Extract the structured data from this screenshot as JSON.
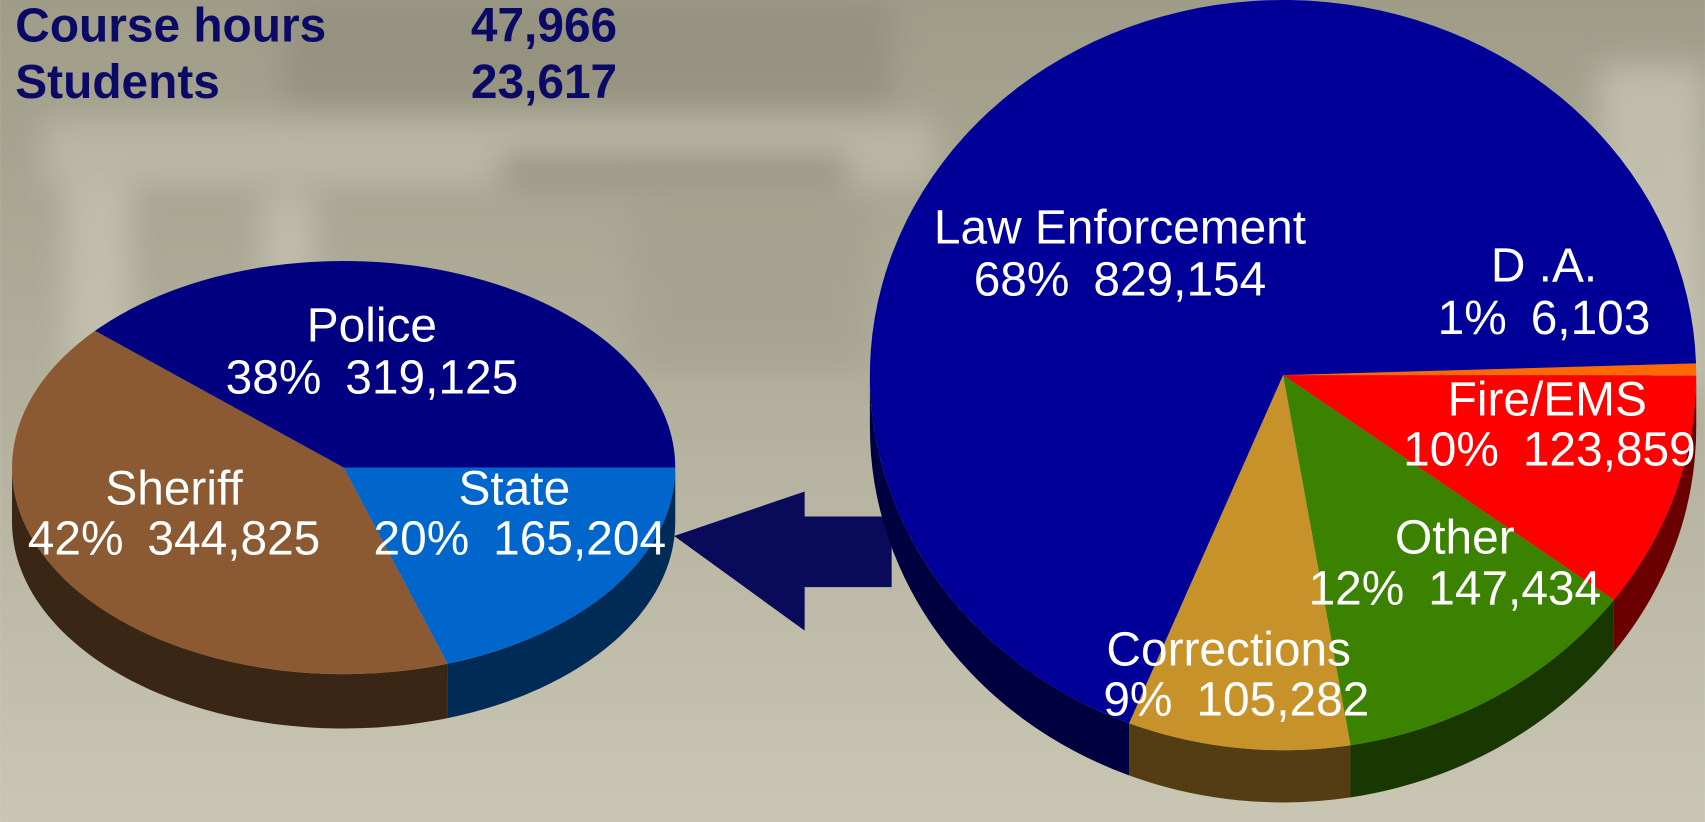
{
  "header": {
    "rows": [
      {
        "label": "Course hours",
        "value": "47,966"
      },
      {
        "label": "Students",
        "value": "23,617"
      }
    ]
  },
  "chart_data": [
    {
      "type": "pie",
      "categories": [
        "State",
        "Sheriff",
        "Police"
      ],
      "values": [
        165204,
        344825,
        319125
      ],
      "value_labels": [
        "165,204",
        "344,825",
        "319,125"
      ],
      "percent_labels": [
        "20%",
        "42%",
        "38%"
      ],
      "colors": [
        "#0066cc",
        "#8b5a32",
        "#000080"
      ]
    },
    {
      "type": "pie",
      "categories": [
        "D .A.",
        "Fire/EMS",
        "Other",
        "Corrections",
        "Law Enforcement"
      ],
      "values": [
        6103,
        123859,
        147434,
        105282,
        829154
      ],
      "value_labels": [
        "6,103",
        "123,859",
        "147,434",
        "105,282",
        "829,154"
      ],
      "percent_labels": [
        "1%",
        "10%",
        "12%",
        "9%",
        "68%"
      ],
      "colors": [
        "#ff6a00",
        "#ff0000",
        "#3b8200",
        "#c8922a",
        "#000099"
      ]
    }
  ]
}
